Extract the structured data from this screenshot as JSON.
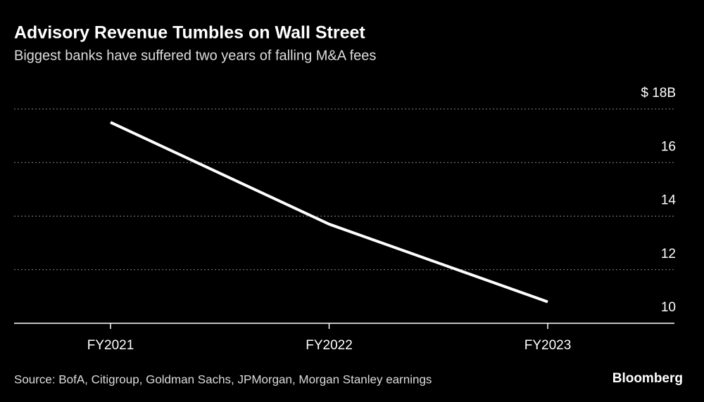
{
  "chart_data": {
    "type": "line",
    "title": "Advisory Revenue Tumbles on Wall Street",
    "subtitle": "Biggest banks have suffered two years of falling M&A fees",
    "categories": [
      "FY2021",
      "FY2022",
      "FY2023"
    ],
    "series": [
      {
        "name": "Advisory revenue",
        "color": "#ffffff",
        "values": [
          17.5,
          13.7,
          10.8
        ]
      }
    ],
    "ylim": [
      10,
      18
    ],
    "yticks": [
      10,
      12,
      14,
      16,
      {
        "value": 18,
        "label": "$ 18B"
      }
    ],
    "grid": true,
    "source": "Source: BofA, Citigroup, Goldman Sachs, JPMorgan, Morgan Stanley earnings",
    "brand": "Bloomberg"
  }
}
